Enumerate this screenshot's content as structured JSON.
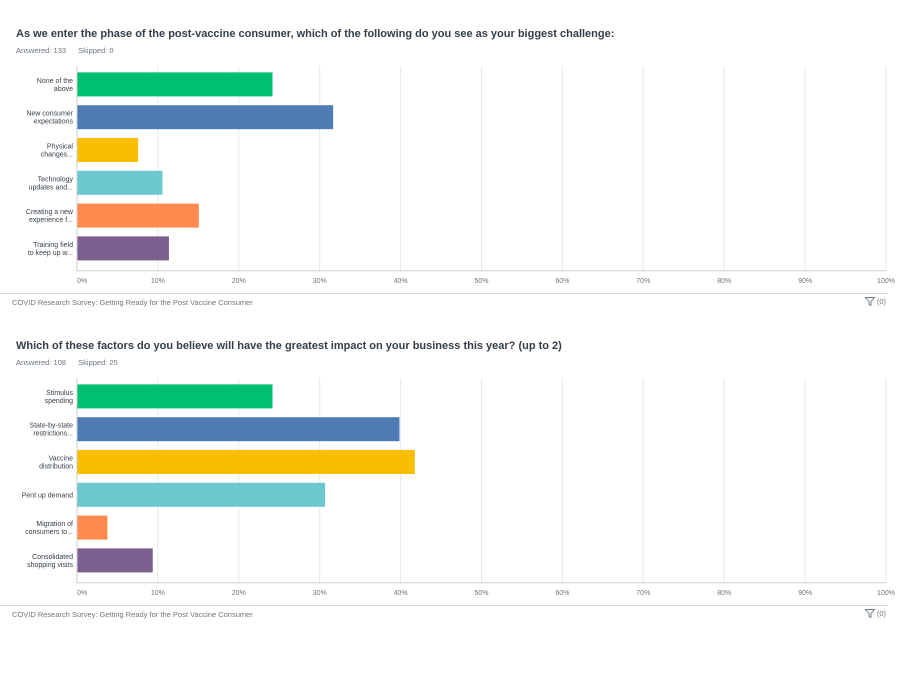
{
  "questions": [
    {
      "title": "As we enter the phase of the post-vaccine consumer, which of the following do you see as your biggest challenge:",
      "answered": "Answered: 133",
      "skipped": "Skipped: 0",
      "footer": "COVID Research Survey: Getting Ready for the Post Vaccine Consumer",
      "filter_count": "(0)"
    },
    {
      "title": "Which of these factors do you believe will have the greatest impact on your business this year? (up to 2)",
      "answered": "Answered: 108",
      "skipped": "Skipped: 25",
      "footer": "COVID Research Survey: Getting Ready for the Post Vaccine Consumer",
      "filter_count": "(0)"
    }
  ],
  "chart_data": [
    {
      "type": "bar",
      "orientation": "horizontal",
      "categories": [
        [
          "None of the",
          "above"
        ],
        [
          "New consumer",
          "expectations"
        ],
        [
          "Physical",
          "changes..."
        ],
        [
          "Technology",
          "updates and..."
        ],
        [
          "Creating a new",
          "experience f..."
        ],
        [
          "Training field",
          "to keep up w..."
        ]
      ],
      "values": [
        24.1,
        31.6,
        7.5,
        10.5,
        15.0,
        11.3
      ],
      "colors": [
        "#00bf6f",
        "#507cb6",
        "#f9be00",
        "#6bc8cd",
        "#ff8b4f",
        "#7d5e90"
      ],
      "xlim": [
        0,
        100
      ],
      "ticks": [
        "0%",
        "10%",
        "20%",
        "30%",
        "40%",
        "50%",
        "60%",
        "70%",
        "80%",
        "90%",
        "100%"
      ],
      "grid": true
    },
    {
      "type": "bar",
      "orientation": "horizontal",
      "categories": [
        [
          "Stimulus",
          "spending"
        ],
        [
          "State-by-state",
          "restrictions..."
        ],
        [
          "Vaccine",
          "distribution"
        ],
        [
          "Pent up demand"
        ],
        [
          "Migration of",
          "consumers to..."
        ],
        [
          "Consolidated",
          "shopping visits"
        ]
      ],
      "values": [
        24.1,
        39.8,
        41.7,
        30.6,
        3.7,
        9.3
      ],
      "colors": [
        "#00bf6f",
        "#507cb6",
        "#f9be00",
        "#6bc8cd",
        "#ff8b4f",
        "#7d5e90"
      ],
      "xlim": [
        0,
        100
      ],
      "ticks": [
        "0%",
        "10%",
        "20%",
        "30%",
        "40%",
        "50%",
        "60%",
        "70%",
        "80%",
        "90%",
        "100%"
      ],
      "grid": true
    }
  ]
}
